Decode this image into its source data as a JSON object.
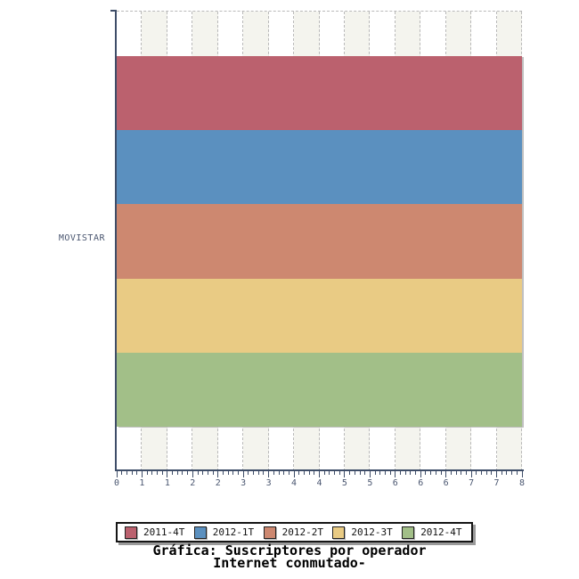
{
  "chart_data": {
    "type": "bar",
    "orientation": "horizontal",
    "title": "Gráfica: Suscriptores por operador",
    "subtitle": "Internet conmutado-",
    "categories": [
      "MOVISTAR"
    ],
    "series": [
      {
        "name": "2011-4T",
        "color": "#bb616e",
        "values": [
          8
        ]
      },
      {
        "name": "2012-1T",
        "color": "#5b90bf",
        "values": [
          8
        ]
      },
      {
        "name": "2012-2T",
        "color": "#cd8870",
        "values": [
          8
        ]
      },
      {
        "name": "2012-3T",
        "color": "#e9cb84",
        "values": [
          8
        ]
      },
      {
        "name": "2012-4T",
        "color": "#a2bf88",
        "values": [
          8
        ]
      }
    ],
    "xlim": [
      0,
      8
    ],
    "xtick_labels": [
      "0",
      "1",
      "1",
      "2",
      "2",
      "3",
      "3",
      "4",
      "4",
      "5",
      "5",
      "6",
      "6",
      "6",
      "7",
      "7",
      "8"
    ],
    "minor_ticks_per_interval": 4,
    "grid": "vertical-dashed",
    "background_stripes": true,
    "legend_position": "bottom"
  },
  "colors": {
    "axis": "#3e4d68",
    "tick_label": "#4a5670",
    "category_label": "#4a5670",
    "stripe": "#f4f4ee",
    "gridline": "#b9b9b9",
    "legend_border": "#151515",
    "legend_shadow": "#9a9a9a",
    "legend_text": "#111111",
    "swatch_border": "#222222",
    "title_text": "#000000",
    "plot_background": "#ffffff"
  }
}
